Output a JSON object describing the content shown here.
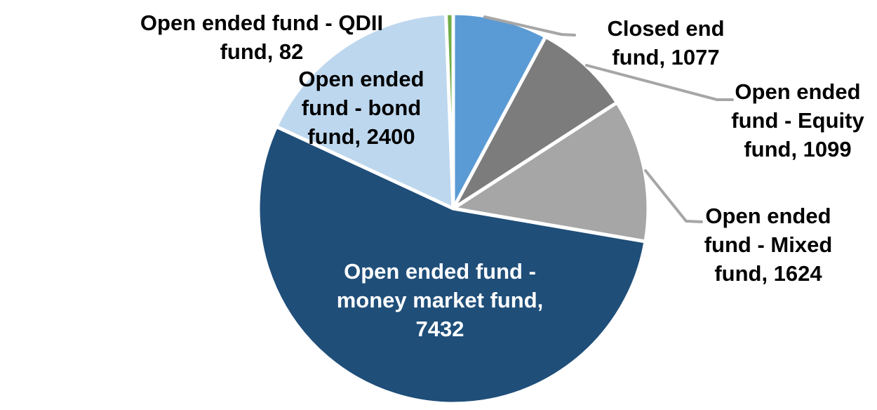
{
  "chart_data": {
    "type": "pie",
    "title": "",
    "legend": "none",
    "background_color": "#FFFFFF",
    "leader_line_color": "#A6A6A6",
    "start_angle_deg": 0,
    "direction": "clockwise",
    "slices": [
      {
        "id": "closed-end-fund",
        "label": "Closed end fund",
        "value": 1077,
        "color": "#5B9BD5",
        "label_color": "#000000",
        "label_lines": [
          "Closed end",
          "fund, 1077"
        ]
      },
      {
        "id": "open-ended-equity-fund",
        "label": "Open ended fund - Equity fund",
        "value": 1099,
        "color": "#7C7C7C",
        "label_color": "#000000",
        "label_lines": [
          "Open ended",
          "fund - Equity",
          "fund, 1099"
        ]
      },
      {
        "id": "open-ended-mixed-fund",
        "label": "Open ended fund - Mixed fund",
        "value": 1624,
        "color": "#A6A6A6",
        "label_color": "#000000",
        "label_lines": [
          "Open ended",
          "fund - Mixed",
          "fund, 1624"
        ]
      },
      {
        "id": "open-ended-money-market-fund",
        "label": "Open ended fund - money market fund",
        "value": 7432,
        "color": "#1F4E79",
        "label_color": "#FFFFFF",
        "label_lines": [
          "Open ended fund -",
          "money market fund,",
          "7432"
        ]
      },
      {
        "id": "open-ended-bond-fund",
        "label": "Open ended fund - bond fund",
        "value": 2400,
        "color": "#BDD7EE",
        "label_color": "#000000",
        "label_lines": [
          "Open ended",
          "fund - bond",
          "fund, 2400"
        ]
      },
      {
        "id": "open-ended-qdii-fund",
        "label": "Open ended fund - QDII fund",
        "value": 82,
        "color": "#70AD47",
        "label_color": "#000000",
        "label_lines": [
          "Open ended fund - QDII",
          "fund, 82"
        ]
      }
    ]
  }
}
